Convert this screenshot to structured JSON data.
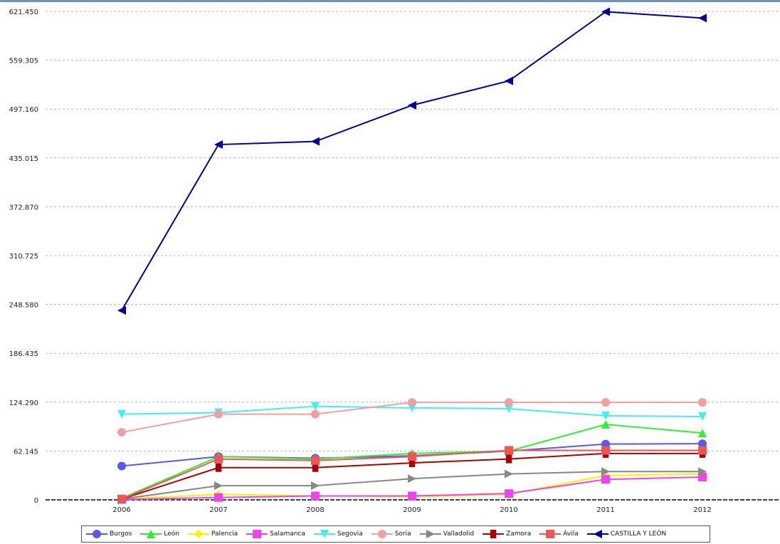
{
  "chart_data": {
    "type": "line",
    "categories": [
      "2006",
      "2007",
      "2008",
      "2009",
      "2010",
      "2011",
      "2012"
    ],
    "y_ticks": [
      "0",
      "62.145",
      "124.290",
      "186.435",
      "248.580",
      "310.725",
      "372.870",
      "435.015",
      "497.160",
      "559.305",
      "621.450"
    ],
    "ylim": [
      0,
      621450
    ],
    "grid": true,
    "legend_position": "bottom",
    "series": [
      {
        "name": "Burgos",
        "color": "#5a5ae6",
        "marker": "circle",
        "values": [
          43000,
          55000,
          53000,
          56000,
          62000,
          71000,
          71500
        ]
      },
      {
        "name": "León",
        "color": "#33ee33",
        "marker": "triangle-up",
        "values": [
          2000,
          55000,
          52000,
          59000,
          62000,
          96000,
          85000
        ]
      },
      {
        "name": "Palencia",
        "color": "#f4f400",
        "marker": "diamond",
        "values": [
          1000,
          7000,
          5000,
          4000,
          7000,
          31000,
          33000
        ]
      },
      {
        "name": "Salamanca",
        "color": "#ee44ee",
        "marker": "square",
        "values": [
          500,
          3000,
          5000,
          5000,
          8000,
          26000,
          29000
        ]
      },
      {
        "name": "Segovia",
        "color": "#44eeee",
        "marker": "triangle-down",
        "values": [
          109000,
          111000,
          119000,
          117000,
          116000,
          107000,
          106000
        ]
      },
      {
        "name": "Soria",
        "color": "#f0a0a0",
        "marker": "circle",
        "values": [
          86000,
          109000,
          109000,
          124000,
          124000,
          124000,
          124000
        ]
      },
      {
        "name": "Valladolid",
        "color": "#888888",
        "marker": "triangle-right",
        "values": [
          1000,
          18000,
          18000,
          27000,
          33000,
          36000,
          36000
        ]
      },
      {
        "name": "Zamora",
        "color": "#aa0000",
        "marker": "rect-v",
        "values": [
          1000,
          41000,
          41000,
          47000,
          52000,
          59000,
          59000
        ]
      },
      {
        "name": "Ávila",
        "color": "#ee5555",
        "marker": "square",
        "values": [
          1000,
          52000,
          50000,
          55000,
          63000,
          63000,
          63000
        ]
      },
      {
        "name": "CASTILLA Y LEÓN",
        "color": "#000099",
        "marker": "triangle-left",
        "values": [
          241000,
          452000,
          456000,
          502000,
          533000,
          621000,
          613000
        ]
      }
    ]
  }
}
